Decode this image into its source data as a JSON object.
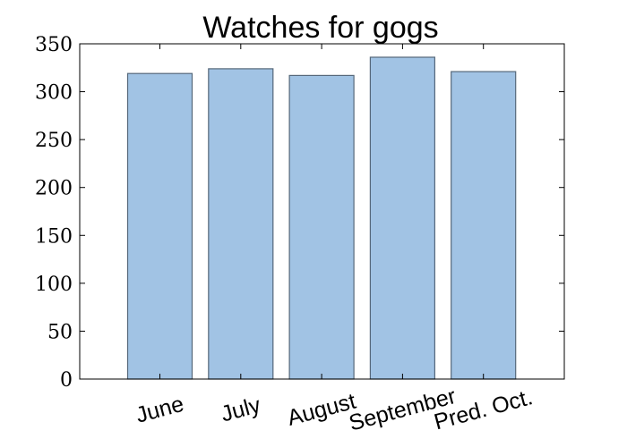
{
  "chart_data": {
    "type": "bar",
    "title": "Watches for gogs",
    "xlabel": "",
    "ylabel": "",
    "categories": [
      "June",
      "July",
      "August",
      "September",
      "Pred. Oct."
    ],
    "values": [
      319,
      324,
      317,
      336,
      321
    ],
    "ylim": [
      0,
      350
    ],
    "yticks": [
      0,
      50,
      100,
      150,
      200,
      250,
      300,
      350
    ],
    "bar_color": "#a1c3e4",
    "bar_edge_color": "#56687a",
    "grid": false,
    "legend": "none"
  }
}
